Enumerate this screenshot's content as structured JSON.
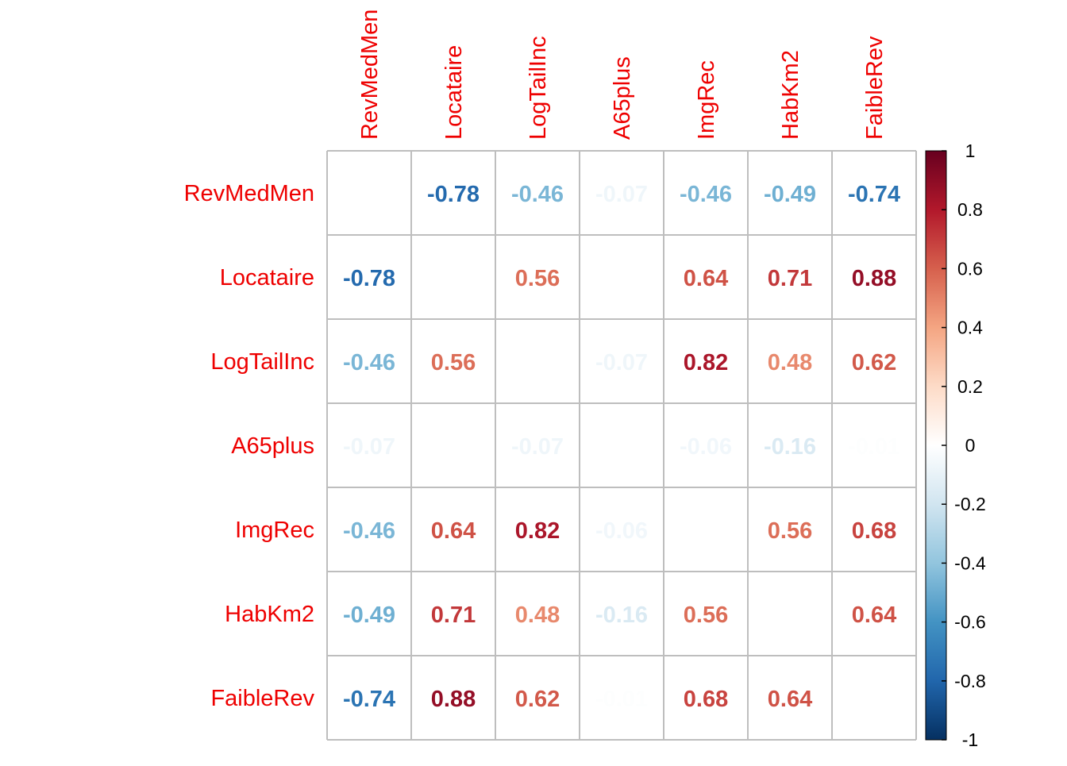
{
  "chart_data": {
    "type": "heatmap",
    "title": "",
    "variables": [
      "RevMedMen",
      "Locataire",
      "LogTailInc",
      "A65plus",
      "ImgRec",
      "HabKm2",
      "FaibleRev"
    ],
    "matrix": [
      [
        null,
        -0.78,
        -0.46,
        -0.07,
        -0.46,
        -0.49,
        -0.74
      ],
      [
        -0.78,
        null,
        0.56,
        0,
        0.64,
        0.71,
        0.88
      ],
      [
        -0.46,
        0.56,
        null,
        -0.07,
        0.82,
        0.48,
        0.62
      ],
      [
        -0.07,
        0,
        -0.07,
        null,
        -0.06,
        -0.16,
        -0.01
      ],
      [
        -0.46,
        0.64,
        0.82,
        -0.06,
        null,
        0.56,
        0.68
      ],
      [
        -0.49,
        0.71,
        0.48,
        -0.16,
        0.56,
        null,
        0.64
      ],
      [
        -0.74,
        0.88,
        0.62,
        -0.01,
        0.68,
        0.64,
        null
      ]
    ],
    "diagonal_shown": false,
    "grid": true,
    "legend": {
      "position": "right",
      "range": [
        -1,
        1
      ],
      "ticks": [
        1,
        0.8,
        0.6,
        0.4,
        0.2,
        0,
        -0.2,
        -0.4,
        -0.6,
        -0.8,
        -1
      ],
      "tick_labels": [
        "1",
        "0.8",
        "0.6",
        "0.4",
        "0.2",
        "0",
        "-0.2",
        "-0.4",
        "-0.6",
        "-0.8",
        "-1"
      ]
    },
    "colors": {
      "label_color": "#ee0000",
      "grid_color": "#bebebe",
      "scale": [
        "#67001f",
        "#b2182b",
        "#d6604d",
        "#f4a582",
        "#fddbc7",
        "#ffffff",
        "#d1e5f0",
        "#92c5de",
        "#4393c3",
        "#2166ac",
        "#053061"
      ]
    }
  }
}
